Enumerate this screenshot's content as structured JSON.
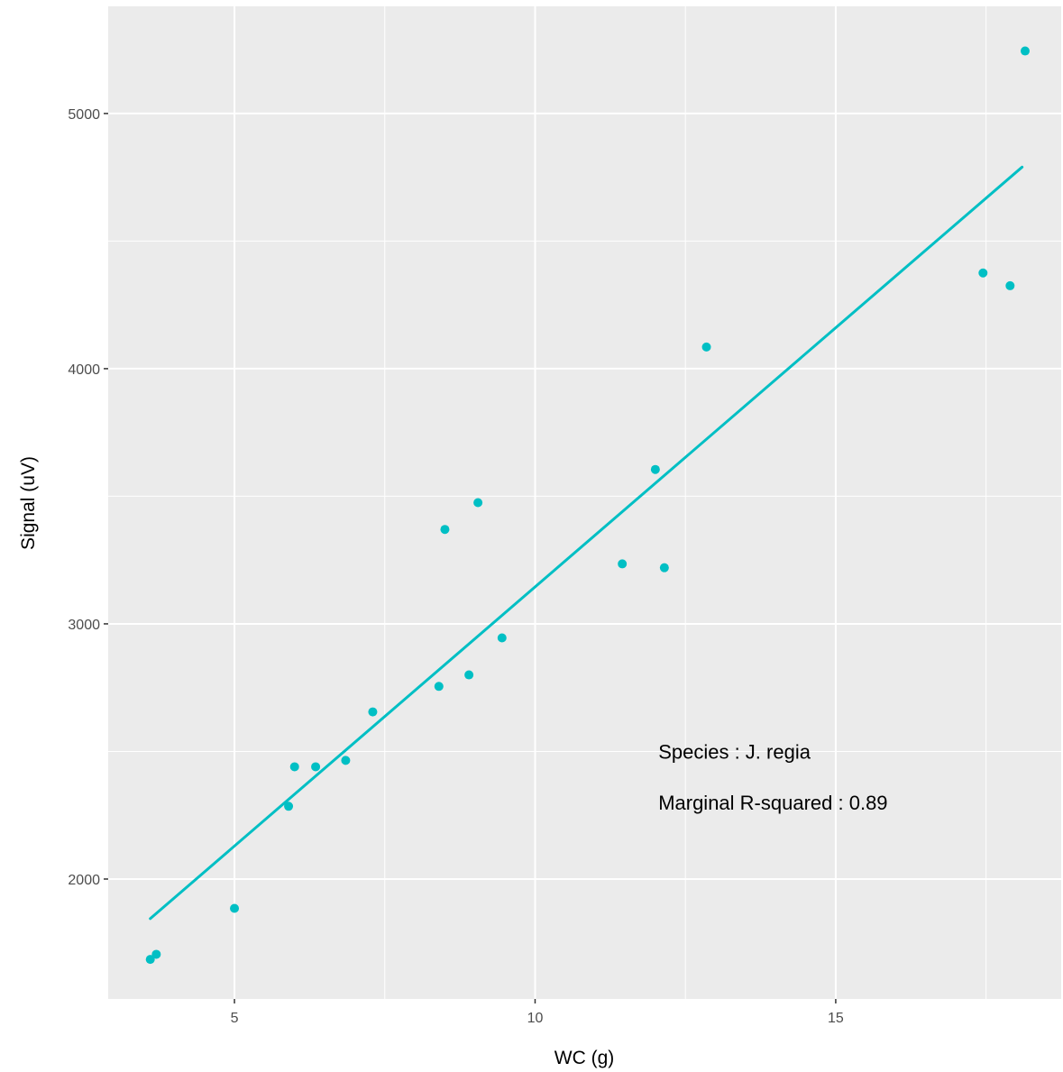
{
  "chart_data": {
    "type": "scatter",
    "title": "",
    "xlabel": "WC (g)",
    "ylabel": "Signal (uV)",
    "xlim": [
      2.9,
      18.75
    ],
    "ylim": [
      1530,
      5420
    ],
    "x_ticks": [
      5,
      10,
      15
    ],
    "x_tick_labels": [
      "5",
      "10",
      "15"
    ],
    "y_ticks": [
      2000,
      3000,
      4000,
      5000
    ],
    "y_tick_labels": [
      "2000",
      "3000",
      "4000",
      "5000"
    ],
    "grid": true,
    "legend": "none",
    "colors": {
      "panel": "#ebebeb",
      "grid": "#ffffff",
      "series": "#00bfc4"
    },
    "series": [
      {
        "points": [
          {
            "x": 3.6,
            "y": 1685
          },
          {
            "x": 3.7,
            "y": 1705
          },
          {
            "x": 5.0,
            "y": 1885
          },
          {
            "x": 5.9,
            "y": 2285
          },
          {
            "x": 6.0,
            "y": 2440
          },
          {
            "x": 6.35,
            "y": 2440
          },
          {
            "x": 6.85,
            "y": 2465
          },
          {
            "x": 7.3,
            "y": 2655
          },
          {
            "x": 8.4,
            "y": 2755
          },
          {
            "x": 8.5,
            "y": 3370
          },
          {
            "x": 8.9,
            "y": 2800
          },
          {
            "x": 9.05,
            "y": 3475
          },
          {
            "x": 9.45,
            "y": 2945
          },
          {
            "x": 11.45,
            "y": 3235
          },
          {
            "x": 12.0,
            "y": 3605
          },
          {
            "x": 12.15,
            "y": 3220
          },
          {
            "x": 12.85,
            "y": 4085
          },
          {
            "x": 17.45,
            "y": 4375
          },
          {
            "x": 17.9,
            "y": 4325
          },
          {
            "x": 18.15,
            "y": 5245
          }
        ]
      }
    ],
    "fit_line": {
      "x": [
        3.6,
        18.1
      ],
      "y": [
        1845,
        4790
      ]
    },
    "annotations": [
      {
        "text": "Species : J. regia",
        "x": 12.05,
        "y": 2500
      },
      {
        "text": "Marginal R-squared : 0.89",
        "x": 12.05,
        "y": 2300
      }
    ]
  }
}
